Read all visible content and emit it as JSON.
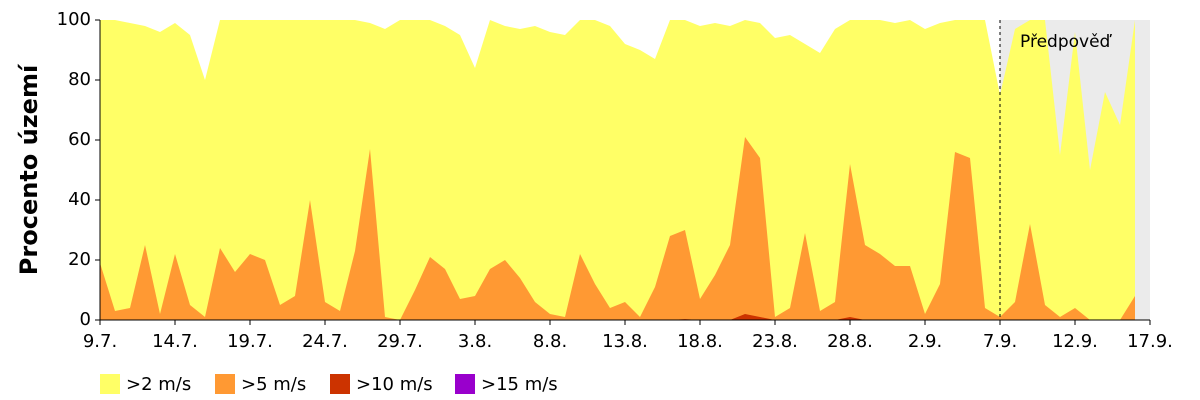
{
  "chart_data": {
    "type": "area",
    "y_label": "Procento území",
    "categories": [
      "9.7.",
      null,
      null,
      null,
      null,
      "14.7.",
      null,
      null,
      null,
      null,
      "19.7.",
      null,
      null,
      null,
      null,
      "24.7.",
      null,
      null,
      null,
      null,
      "29.7.",
      null,
      null,
      null,
      null,
      "3.8.",
      null,
      null,
      null,
      null,
      "8.8.",
      null,
      null,
      null,
      null,
      "13.8.",
      null,
      null,
      null,
      null,
      "18.8.",
      null,
      null,
      null,
      null,
      "23.8.",
      null,
      null,
      null,
      null,
      "28.8.",
      null,
      null,
      null,
      null,
      "2.9.",
      null,
      null,
      null,
      null,
      "7.9.",
      null,
      null,
      null,
      null,
      "12.9.",
      null,
      null,
      null,
      null,
      "17.9."
    ],
    "series": [
      {
        "name": ">2 m/s",
        "color": "#ffff66",
        "values": [
          100,
          100,
          99,
          98,
          96,
          99,
          95,
          80,
          100,
          100,
          100,
          100,
          100,
          100,
          100,
          100,
          100,
          100,
          99,
          97,
          100,
          100,
          100,
          98,
          95,
          84,
          100,
          98,
          97,
          98,
          96,
          95,
          100,
          100,
          98,
          92,
          90,
          87,
          100,
          100,
          98,
          99,
          98,
          100,
          99,
          94,
          95,
          92,
          89,
          97,
          100,
          100,
          100,
          99,
          100,
          97,
          99,
          100,
          100,
          100,
          75,
          97,
          100,
          100,
          55,
          96,
          50,
          76,
          65,
          100,
          null
        ]
      },
      {
        "name": ">5 m/s",
        "color": "#ff9933",
        "values": [
          19,
          3,
          4,
          25,
          2,
          22,
          5,
          1,
          24,
          16,
          22,
          20,
          5,
          8,
          40,
          6,
          3,
          23,
          57,
          1,
          0,
          10,
          21,
          17,
          7,
          8,
          17,
          20,
          14,
          6,
          2,
          1,
          22,
          12,
          4,
          6,
          1,
          11,
          28,
          30,
          7,
          15,
          25,
          61,
          54,
          1,
          4,
          29,
          3,
          6,
          52,
          25,
          22,
          18,
          18,
          2,
          12,
          56,
          54,
          4,
          1,
          6,
          32,
          5,
          1,
          4,
          0,
          0,
          0,
          8,
          null
        ]
      },
      {
        "name": ">10 m/s",
        "color": "#cc3300",
        "values": [
          0,
          0,
          0,
          0,
          0,
          0,
          0,
          0,
          0,
          0,
          0,
          0,
          0,
          0,
          0,
          0,
          0,
          0,
          0,
          0,
          0,
          0,
          0,
          0,
          0,
          0,
          0,
          0,
          0,
          0,
          0,
          0,
          0,
          0,
          0,
          0,
          0,
          0,
          0,
          0.3,
          0,
          0,
          0,
          2,
          1,
          0,
          0,
          0,
          0,
          0,
          1,
          0,
          0,
          0,
          0,
          0,
          0,
          0,
          0,
          0,
          0,
          0,
          0,
          0,
          0,
          0,
          0,
          0,
          0,
          0,
          null
        ]
      },
      {
        "name": ">15 m/s",
        "color": "#9900cc",
        "values": [
          0,
          0,
          0,
          0,
          0,
          0,
          0,
          0,
          0,
          0,
          0,
          0,
          0,
          0,
          0,
          0,
          0,
          0,
          0,
          0,
          0,
          0,
          0,
          0,
          0,
          0,
          0,
          0,
          0,
          0,
          0,
          0,
          0,
          0,
          0,
          0,
          0,
          0,
          0,
          0,
          0,
          0,
          0,
          0,
          0,
          0,
          0,
          0,
          0,
          0,
          0,
          0,
          0,
          0,
          0,
          0,
          0,
          0,
          0,
          0,
          0,
          0,
          0,
          0,
          0,
          0,
          0,
          0,
          0,
          0,
          null
        ]
      }
    ],
    "ylim": [
      0,
      100
    ],
    "yticks": [
      0,
      20,
      40,
      60,
      80,
      100
    ],
    "forecast": {
      "label": "Předpověď",
      "from": "7.9.",
      "color": "#ebebeb"
    }
  }
}
